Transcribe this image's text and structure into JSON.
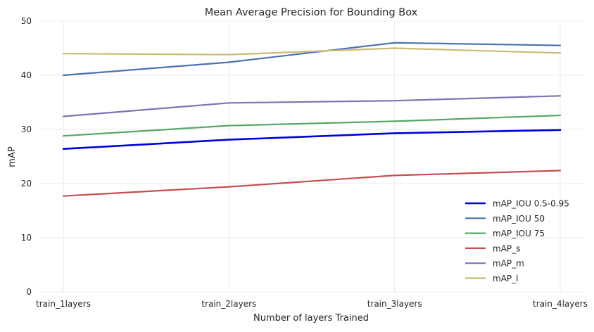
{
  "chart_data": {
    "type": "line",
    "title": "Mean Average Precision for Bounding Box",
    "xlabel": "Number of layers Trained",
    "ylabel": "mAP",
    "categories": [
      "train_1layers",
      "train_2layers",
      "train_3layers",
      "train_4layers"
    ],
    "ylim": [
      0,
      50
    ],
    "yticks": [
      "0",
      "10",
      "20",
      "30",
      "40",
      "50"
    ],
    "grid": true,
    "legend_position": "bottom-right",
    "series": [
      {
        "name": "mAP_IOU 0.5-0.95",
        "color": "#0000dd",
        "values": [
          26.4,
          28.1,
          29.3,
          29.9
        ]
      },
      {
        "name": "mAP_IOU 50",
        "color": "#4c72b0",
        "values": [
          40.0,
          42.4,
          46.0,
          45.5
        ]
      },
      {
        "name": "mAP_IOU 75",
        "color": "#55a868",
        "values": [
          28.8,
          30.7,
          31.5,
          32.6
        ]
      },
      {
        "name": "mAP_s",
        "color": "#c44e52",
        "values": [
          17.7,
          19.4,
          21.5,
          22.4
        ]
      },
      {
        "name": "mAP_m",
        "color": "#8172b2",
        "values": [
          32.4,
          34.9,
          35.3,
          36.2
        ]
      },
      {
        "name": "mAP_l",
        "color": "#ccb974",
        "values": [
          44.0,
          43.8,
          45.0,
          44.1
        ]
      }
    ]
  }
}
